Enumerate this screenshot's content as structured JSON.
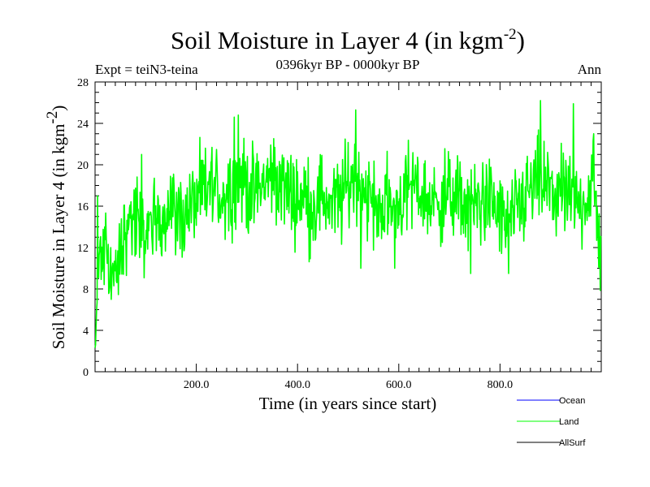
{
  "chart_data": {
    "type": "line",
    "title_main": "Soil Moisture in Layer 4 (in kgm",
    "title_sup": "-2",
    "title_close": ")",
    "expt_label": "Expt = teiN3-teina",
    "period_label": "0396kyr BP - 0000kyr BP",
    "season_label": "Ann",
    "xlabel": "Time (in years since start)",
    "ylabel_main": "Soil Moisture in Layer 4 (in kgm",
    "ylabel_sup": "-2",
    "ylabel_close": ")",
    "xlim": [
      0,
      1000
    ],
    "ylim": [
      0,
      28
    ],
    "x_ticks": [
      200,
      400,
      600,
      800
    ],
    "x_tick_labels": [
      "200.0",
      "400.0",
      "600.0",
      "800.0"
    ],
    "y_ticks": [
      0,
      4,
      8,
      12,
      16,
      20,
      24,
      28
    ],
    "y_tick_labels": [
      "0",
      "4",
      "8",
      "12",
      "16",
      "20",
      "24",
      "28"
    ],
    "legend": [
      {
        "name": "Ocean",
        "color": "#0000ff"
      },
      {
        "name": "Land",
        "color": "#00ff00"
      },
      {
        "name": "AllSurf",
        "color": "#000000"
      }
    ],
    "series": [
      {
        "name": "Land",
        "color": "#00ff00",
        "anchors": [
          [
            0,
            2
          ],
          [
            3,
            5
          ],
          [
            6,
            9
          ],
          [
            10,
            12
          ],
          [
            14,
            10
          ],
          [
            20,
            13
          ],
          [
            30,
            10
          ],
          [
            40,
            9
          ],
          [
            50,
            11
          ],
          [
            60,
            14
          ],
          [
            75,
            15
          ],
          [
            90,
            13
          ],
          [
            110,
            14
          ],
          [
            130,
            15
          ],
          [
            150,
            16
          ],
          [
            170,
            15
          ],
          [
            190,
            16
          ],
          [
            210,
            17
          ],
          [
            230,
            18
          ],
          [
            250,
            17
          ],
          [
            270,
            18
          ],
          [
            290,
            19
          ],
          [
            310,
            17
          ],
          [
            330,
            18
          ],
          [
            350,
            19
          ],
          [
            370,
            18
          ],
          [
            390,
            17
          ],
          [
            410,
            17
          ],
          [
            430,
            16
          ],
          [
            450,
            17
          ],
          [
            470,
            16
          ],
          [
            490,
            17
          ],
          [
            510,
            19
          ],
          [
            530,
            18
          ],
          [
            550,
            16
          ],
          [
            570,
            16
          ],
          [
            590,
            16
          ],
          [
            610,
            17
          ],
          [
            630,
            18
          ],
          [
            650,
            17
          ],
          [
            670,
            16
          ],
          [
            690,
            17
          ],
          [
            710,
            17
          ],
          [
            730,
            16
          ],
          [
            750,
            16
          ],
          [
            770,
            17
          ],
          [
            790,
            16
          ],
          [
            810,
            14
          ],
          [
            830,
            15
          ],
          [
            850,
            17
          ],
          [
            870,
            18
          ],
          [
            890,
            18
          ],
          [
            910,
            17
          ],
          [
            930,
            17
          ],
          [
            950,
            16
          ],
          [
            970,
            17
          ],
          [
            985,
            18
          ],
          [
            995,
            13
          ],
          [
            1000,
            12
          ]
        ],
        "spikes": [
          [
            5,
            17
          ],
          [
            32,
            7
          ],
          [
            92,
            21
          ],
          [
            275,
            24.6
          ],
          [
            283,
            24.8
          ],
          [
            515,
            25.3
          ],
          [
            525,
            10
          ],
          [
            592,
            10
          ],
          [
            742,
            9.5
          ],
          [
            817,
            9.5
          ],
          [
            880,
            26.2
          ],
          [
            945,
            25.9
          ],
          [
            985,
            23
          ]
        ]
      }
    ]
  }
}
